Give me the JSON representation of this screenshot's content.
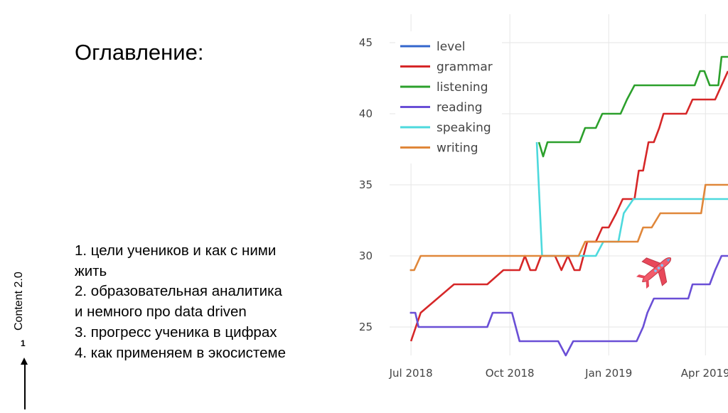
{
  "slide": {
    "title": "Оглавление:",
    "toc": [
      "1. цели учеников и как с ними",
      "жить",
      "2. образовательная аналитика",
      "и немного про data driven",
      "3. прогресс ученика в цифрах",
      "4. как применяем в экосистеме"
    ],
    "side_label": "Content 2.0",
    "page_number": "1",
    "airplane_icon": "airplane-emoji"
  },
  "chart_data": {
    "type": "line",
    "x_labels": [
      "Jul 2018",
      "Oct 2018",
      "Jan 2019",
      "Apr 2019"
    ],
    "y_ticks": [
      25,
      30,
      35,
      40,
      45
    ],
    "ylim": [
      23,
      47
    ],
    "xlim": [
      "2018-06-21",
      "2019-04-22"
    ],
    "legend_position": "top-left",
    "grid": true,
    "series": [
      {
        "name": "level",
        "color": "#3366cc",
        "points": []
      },
      {
        "name": "grammar",
        "color": "#d62728",
        "points": [
          [
            "2018-07-01",
            24
          ],
          [
            "2018-07-10",
            26
          ],
          [
            "2018-08-10",
            28
          ],
          [
            "2018-09-10",
            28
          ],
          [
            "2018-09-25",
            29
          ],
          [
            "2018-10-10",
            29
          ],
          [
            "2018-10-15",
            30
          ],
          [
            "2018-10-20",
            29
          ],
          [
            "2018-10-25",
            29
          ],
          [
            "2018-10-30",
            30
          ],
          [
            "2018-11-05",
            30
          ],
          [
            "2018-11-12",
            30
          ],
          [
            "2018-11-18",
            29
          ],
          [
            "2018-11-24",
            30
          ],
          [
            "2018-11-30",
            29
          ],
          [
            "2018-12-05",
            29
          ],
          [
            "2018-12-12",
            31
          ],
          [
            "2018-12-20",
            31
          ],
          [
            "2018-12-26",
            32
          ],
          [
            "2019-01-01",
            32
          ],
          [
            "2019-01-08",
            33
          ],
          [
            "2019-01-14",
            34
          ],
          [
            "2019-01-18",
            34
          ],
          [
            "2019-01-25",
            34
          ],
          [
            "2019-01-29",
            36
          ],
          [
            "2019-02-02",
            36
          ],
          [
            "2019-02-07",
            38
          ],
          [
            "2019-02-12",
            38
          ],
          [
            "2019-02-17",
            39
          ],
          [
            "2019-02-21",
            40
          ],
          [
            "2019-02-27",
            40
          ],
          [
            "2019-03-06",
            40
          ],
          [
            "2019-03-14",
            40
          ],
          [
            "2019-03-20",
            41
          ],
          [
            "2019-03-28",
            41
          ],
          [
            "2019-04-10",
            41
          ],
          [
            "2019-04-22",
            43
          ]
        ]
      },
      {
        "name": "listening",
        "color": "#2ca02c",
        "points": [
          [
            "2018-10-28",
            38
          ],
          [
            "2018-11-01",
            37
          ],
          [
            "2018-11-05",
            38
          ],
          [
            "2018-11-20",
            38
          ],
          [
            "2018-12-05",
            38
          ],
          [
            "2018-12-10",
            39
          ],
          [
            "2018-12-20",
            39
          ],
          [
            "2018-12-26",
            40
          ],
          [
            "2019-01-02",
            40
          ],
          [
            "2019-01-12",
            40
          ],
          [
            "2019-01-18",
            41
          ],
          [
            "2019-01-25",
            42
          ],
          [
            "2019-02-08",
            42
          ],
          [
            "2019-02-22",
            42
          ],
          [
            "2019-03-08",
            42
          ],
          [
            "2019-03-22",
            42
          ],
          [
            "2019-03-27",
            43
          ],
          [
            "2019-03-31",
            43
          ],
          [
            "2019-04-05",
            42
          ],
          [
            "2019-04-13",
            42
          ],
          [
            "2019-04-16",
            44
          ],
          [
            "2019-04-22",
            44
          ]
        ]
      },
      {
        "name": "reading",
        "color": "#6a4fd6",
        "points": [
          [
            "2018-06-30",
            26
          ],
          [
            "2018-07-05",
            26
          ],
          [
            "2018-07-08",
            25
          ],
          [
            "2018-09-10",
            25
          ],
          [
            "2018-09-15",
            26
          ],
          [
            "2018-10-03",
            26
          ],
          [
            "2018-10-10",
            24
          ],
          [
            "2018-11-15",
            24
          ],
          [
            "2018-11-22",
            23
          ],
          [
            "2018-11-29",
            24
          ],
          [
            "2019-01-16",
            24
          ],
          [
            "2019-01-27",
            24
          ],
          [
            "2019-02-02",
            25
          ],
          [
            "2019-02-06",
            26
          ],
          [
            "2019-02-12",
            27
          ],
          [
            "2019-02-20",
            27
          ],
          [
            "2019-03-08",
            27
          ],
          [
            "2019-03-16",
            27
          ],
          [
            "2019-03-20",
            28
          ],
          [
            "2019-04-05",
            28
          ],
          [
            "2019-04-10",
            29
          ],
          [
            "2019-04-16",
            30
          ],
          [
            "2019-04-22",
            30
          ]
        ]
      },
      {
        "name": "speaking",
        "color": "#4dd9dd",
        "points": [
          [
            "2018-10-26",
            38
          ],
          [
            "2018-10-31",
            30
          ],
          [
            "2018-11-20",
            30
          ],
          [
            "2018-12-20",
            30
          ],
          [
            "2018-12-27",
            31
          ],
          [
            "2019-01-10",
            31
          ],
          [
            "2019-01-15",
            33
          ],
          [
            "2019-01-24",
            34
          ],
          [
            "2019-02-15",
            34
          ],
          [
            "2019-03-15",
            34
          ],
          [
            "2019-04-10",
            34
          ],
          [
            "2019-04-22",
            34
          ]
        ]
      },
      {
        "name": "writing",
        "color": "#e0873a",
        "points": [
          [
            "2018-06-30",
            29
          ],
          [
            "2018-07-04",
            29
          ],
          [
            "2018-07-10",
            30
          ],
          [
            "2018-08-15",
            30
          ],
          [
            "2018-09-20",
            30
          ],
          [
            "2018-10-25",
            30
          ],
          [
            "2018-11-28",
            30
          ],
          [
            "2018-12-04",
            30
          ],
          [
            "2018-12-10",
            31
          ],
          [
            "2018-12-20",
            31
          ],
          [
            "2019-01-28",
            31
          ],
          [
            "2019-02-02",
            32
          ],
          [
            "2019-02-10",
            32
          ],
          [
            "2019-02-18",
            33
          ],
          [
            "2019-03-28",
            33
          ],
          [
            "2019-04-01",
            35
          ],
          [
            "2019-04-22",
            35
          ]
        ]
      }
    ]
  }
}
